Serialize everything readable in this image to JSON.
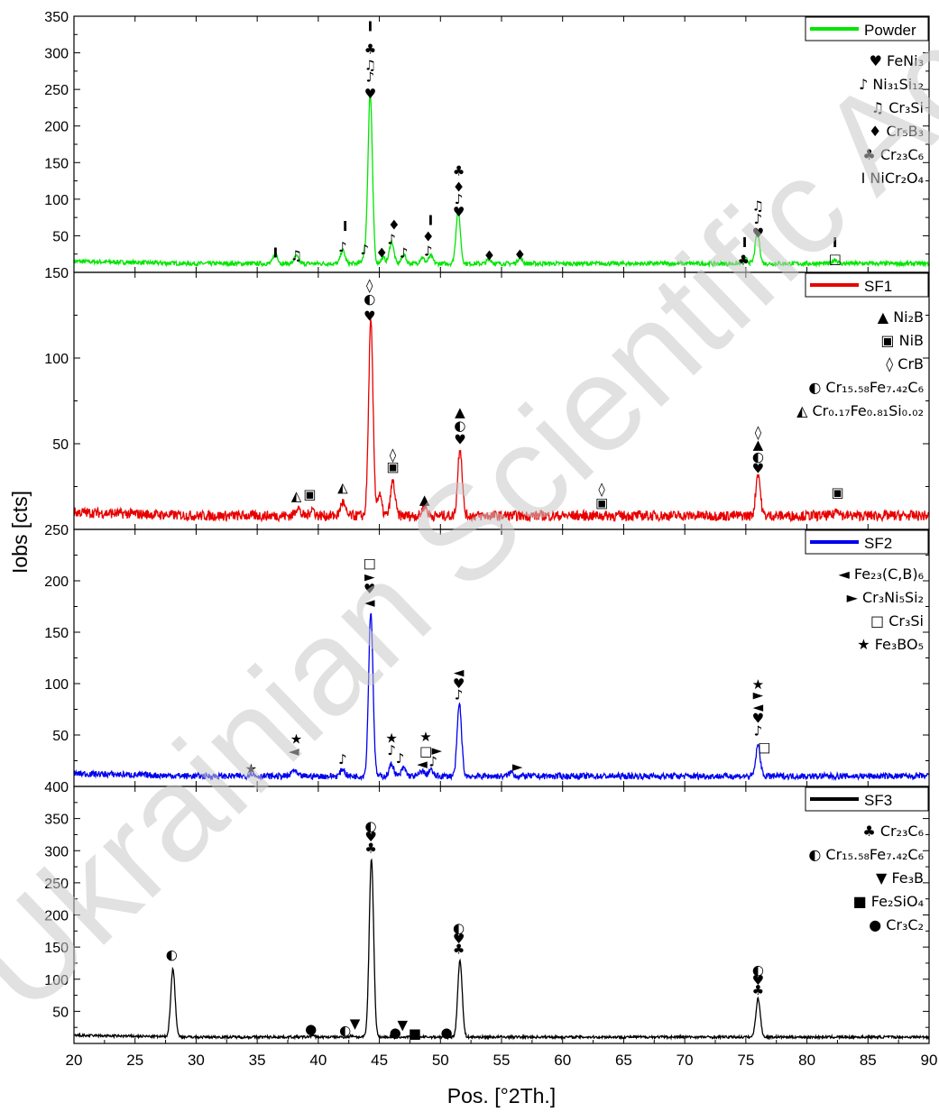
{
  "chart_data": {
    "type": "line",
    "xlabel": "Pos. [°2Th.]",
    "ylabel": "Iobs [cts]",
    "xlim": [
      20,
      90
    ],
    "xticks": [
      "20",
      "25",
      "30",
      "35",
      "40",
      "45",
      "50",
      "55",
      "60",
      "65",
      "70",
      "75",
      "80",
      "85",
      "90"
    ],
    "grid": false,
    "legend_position": "top-right",
    "watermark": "Ukrainian Scientific Academic University",
    "panels": [
      {
        "name": "Powder",
        "color": "#00e600",
        "ylim": [
          0,
          350
        ],
        "yticks": [
          "50",
          "100",
          "150",
          "200",
          "250",
          "300",
          "350"
        ],
        "baseline": 12,
        "noise": 3,
        "peaks": [
          [
            36.5,
            14
          ],
          [
            38.2,
            10
          ],
          [
            42,
            18
          ],
          [
            43.8,
            12
          ],
          [
            44.25,
            232
          ],
          [
            45.3,
            8
          ],
          [
            46,
            30
          ],
          [
            47,
            12
          ],
          [
            48.5,
            8
          ],
          [
            49.2,
            10
          ],
          [
            51.45,
            72
          ],
          [
            54,
            6
          ],
          [
            56.5,
            8
          ],
          [
            75,
            6
          ],
          [
            75.95,
            42
          ],
          [
            82.3,
            6
          ]
        ],
        "legend_phases": [
          {
            "sym": "♥",
            "formula": "FeNi₃"
          },
          {
            "sym": "♪",
            "formula": "Ni₃₁Si₁₂"
          },
          {
            "sym": "♫",
            "formula": "Cr₃Si"
          },
          {
            "sym": "♦",
            "formula": "Cr₅B₃"
          },
          {
            "sym": "♣",
            "formula": "Cr₂₃C₆"
          },
          {
            "sym": "Ι",
            "formula": "NiCr₂O₄"
          }
        ],
        "markers": [
          {
            "x": 36.5,
            "y": 28,
            "s": "Ι"
          },
          {
            "x": 38.2,
            "y": 24,
            "s": "♫"
          },
          {
            "x": 42,
            "y": 36,
            "s": "♪"
          },
          {
            "x": 42.2,
            "y": 64,
            "s": "Ι"
          },
          {
            "x": 43.8,
            "y": 32,
            "s": "♪"
          },
          {
            "x": 44.25,
            "y": 245,
            "s": "♥"
          },
          {
            "x": 44.25,
            "y": 268,
            "s": "♪"
          },
          {
            "x": 44.25,
            "y": 284,
            "s": "♫"
          },
          {
            "x": 44.25,
            "y": 306,
            "s": "♣"
          },
          {
            "x": 44.25,
            "y": 337,
            "s": "Ι"
          },
          {
            "x": 45.2,
            "y": 28,
            "s": "♦"
          },
          {
            "x": 46,
            "y": 46,
            "s": "♪"
          },
          {
            "x": 46.2,
            "y": 66,
            "s": "♦"
          },
          {
            "x": 47,
            "y": 28,
            "s": "♪"
          },
          {
            "x": 49,
            "y": 30,
            "s": "♪"
          },
          {
            "x": 49,
            "y": 50,
            "s": "♦"
          },
          {
            "x": 49.2,
            "y": 72,
            "s": "Ι"
          },
          {
            "x": 51.5,
            "y": 84,
            "s": "♥"
          },
          {
            "x": 51.5,
            "y": 101,
            "s": "♪"
          },
          {
            "x": 51.5,
            "y": 118,
            "s": "♦"
          },
          {
            "x": 51.5,
            "y": 140,
            "s": "♣"
          },
          {
            "x": 54,
            "y": 24,
            "s": "♦"
          },
          {
            "x": 56.5,
            "y": 25,
            "s": "♦"
          },
          {
            "x": 74.8,
            "y": 18,
            "s": "♣"
          },
          {
            "x": 74.9,
            "y": 42,
            "s": "Ι"
          },
          {
            "x": 76,
            "y": 55,
            "s": "♥"
          },
          {
            "x": 76,
            "y": 74,
            "s": "♪"
          },
          {
            "x": 76,
            "y": 92,
            "s": "♫"
          },
          {
            "x": 82.3,
            "y": 20,
            "s": "□"
          },
          {
            "x": 82.3,
            "y": 42,
            "s": "Ι"
          }
        ]
      },
      {
        "name": "SF1",
        "color": "#e80000",
        "ylim": [
          0,
          150
        ],
        "yticks": [
          "50",
          "100",
          "150"
        ],
        "baseline": 8,
        "noise": 3,
        "peaks": [
          [
            38.3,
            5
          ],
          [
            39.5,
            4
          ],
          [
            42,
            8
          ],
          [
            44.3,
            113
          ],
          [
            45,
            12
          ],
          [
            46.1,
            20
          ],
          [
            48.7,
            6
          ],
          [
            51.6,
            40
          ],
          [
            76,
            25
          ],
          [
            82.5,
            4
          ]
        ],
        "legend_phases": [
          {
            "sym": "▲",
            "formula": "Ni₂B"
          },
          {
            "sym": "▣",
            "formula": "NiB"
          },
          {
            "sym": "◊",
            "formula": "CrB"
          },
          {
            "sym": "◐",
            "formula": "Cr₁₅.₅₈Fe₇.₄₂C₆"
          },
          {
            "sym": "◭",
            "formula": "Cr₀.₁₇Fe₀.₈₁Si₀.₀₂"
          }
        ],
        "markers": [
          {
            "x": 38.2,
            "y": 20,
            "s": "◭"
          },
          {
            "x": 39.3,
            "y": 21,
            "s": "▣"
          },
          {
            "x": 42,
            "y": 25,
            "s": "◭"
          },
          {
            "x": 44.2,
            "y": 125,
            "s": "♥"
          },
          {
            "x": 44.2,
            "y": 135,
            "s": "◐"
          },
          {
            "x": 44.2,
            "y": 143,
            "s": "◊"
          },
          {
            "x": 46.1,
            "y": 37,
            "s": "▣"
          },
          {
            "x": 46.1,
            "y": 44,
            "s": "◊"
          },
          {
            "x": 48.7,
            "y": 18,
            "s": "▲"
          },
          {
            "x": 51.6,
            "y": 53,
            "s": "♥"
          },
          {
            "x": 51.6,
            "y": 61,
            "s": "◐"
          },
          {
            "x": 51.6,
            "y": 69,
            "s": "▲"
          },
          {
            "x": 63.2,
            "y": 16,
            "s": "▣"
          },
          {
            "x": 63.2,
            "y": 24,
            "s": "◊"
          },
          {
            "x": 76,
            "y": 36,
            "s": "♥"
          },
          {
            "x": 76,
            "y": 43,
            "s": "◐"
          },
          {
            "x": 76,
            "y": 50,
            "s": "▲"
          },
          {
            "x": 76,
            "y": 57,
            "s": "◊"
          },
          {
            "x": 82.5,
            "y": 22,
            "s": "▣"
          }
        ]
      },
      {
        "name": "SF2",
        "color": "#0000ee",
        "ylim": [
          0,
          250
        ],
        "yticks": [
          "50",
          "100",
          "150",
          "200",
          "250"
        ],
        "baseline": 10,
        "noise": 3,
        "peaks": [
          [
            34.5,
            3
          ],
          [
            38,
            6
          ],
          [
            42,
            7
          ],
          [
            44.3,
            160
          ],
          [
            46,
            12
          ],
          [
            47,
            8
          ],
          [
            48.5,
            5
          ],
          [
            49.2,
            6
          ],
          [
            51.55,
            70
          ],
          [
            55.8,
            4
          ],
          [
            76,
            30
          ]
        ],
        "legend_phases": [
          {
            "sym": "◄",
            "formula": "Fe₂₃(C,B)₆"
          },
          {
            "sym": "►",
            "formula": "Cr₃Ni₅Si₂"
          },
          {
            "sym": "□",
            "formula": "Cr₃Si"
          },
          {
            "sym": "★",
            "formula": "Fe₃BO₅"
          }
        ],
        "markers": [
          {
            "x": 34.5,
            "y": 18,
            "s": "★"
          },
          {
            "x": 38,
            "y": 35,
            "s": "◄"
          },
          {
            "x": 38.2,
            "y": 47,
            "s": "★"
          },
          {
            "x": 42,
            "y": 27,
            "s": "♪"
          },
          {
            "x": 44.2,
            "y": 180,
            "s": "◄"
          },
          {
            "x": 44.2,
            "y": 193,
            "s": "♥"
          },
          {
            "x": 44.2,
            "y": 205,
            "s": "►"
          },
          {
            "x": 44.2,
            "y": 218,
            "s": "□"
          },
          {
            "x": 46,
            "y": 36,
            "s": "♪"
          },
          {
            "x": 46,
            "y": 48,
            "s": "★"
          },
          {
            "x": 46.7,
            "y": 28,
            "s": "♪"
          },
          {
            "x": 48.5,
            "y": 23,
            "s": "◄"
          },
          {
            "x": 48.8,
            "y": 35,
            "s": "□"
          },
          {
            "x": 48.8,
            "y": 49,
            "s": "★"
          },
          {
            "x": 49.4,
            "y": 25,
            "s": "♪"
          },
          {
            "x": 49.7,
            "y": 36,
            "s": "►"
          },
          {
            "x": 51.5,
            "y": 90,
            "s": "♪"
          },
          {
            "x": 51.5,
            "y": 101,
            "s": "♥"
          },
          {
            "x": 51.5,
            "y": 112,
            "s": "◄"
          },
          {
            "x": 56.3,
            "y": 20,
            "s": "►"
          },
          {
            "x": 76,
            "y": 55,
            "s": "♪"
          },
          {
            "x": 76,
            "y": 67,
            "s": "♥"
          },
          {
            "x": 76,
            "y": 78,
            "s": "◄"
          },
          {
            "x": 76,
            "y": 90,
            "s": "►"
          },
          {
            "x": 76,
            "y": 100,
            "s": "★"
          },
          {
            "x": 76.5,
            "y": 39,
            "s": "□"
          }
        ]
      },
      {
        "name": "SF3",
        "color": "#000000",
        "ylim": [
          0,
          400
        ],
        "yticks": [
          "50",
          "100",
          "150",
          "200",
          "250",
          "300",
          "350",
          "400"
        ],
        "baseline": 10,
        "noise": 2,
        "peaks": [
          [
            28.1,
            105
          ],
          [
            39.5,
            2
          ],
          [
            42.8,
            2
          ],
          [
            44.35,
            278
          ],
          [
            51.6,
            120
          ],
          [
            76,
            60
          ]
        ],
        "legend_phases": [
          {
            "sym": "♣",
            "formula": "Cr₂₃C₆"
          },
          {
            "sym": "◐",
            "formula": "Cr₁₅.₅₈Fe₇.₄₂C₆"
          },
          {
            "sym": "▼",
            "formula": "Fe₃B"
          },
          {
            "sym": "■",
            "formula": "Fe₂SiO₄"
          },
          {
            "sym": "●",
            "formula": "Cr₃C₂"
          }
        ],
        "markers": [
          {
            "x": 28,
            "y": 140,
            "s": "◐"
          },
          {
            "x": 39.4,
            "y": 24,
            "s": "●"
          },
          {
            "x": 42.2,
            "y": 22,
            "s": "◐"
          },
          {
            "x": 43,
            "y": 32,
            "s": "▼"
          },
          {
            "x": 44.3,
            "y": 305,
            "s": "♣"
          },
          {
            "x": 44.3,
            "y": 323,
            "s": "♥"
          },
          {
            "x": 44.3,
            "y": 340,
            "s": "◐"
          },
          {
            "x": 46.3,
            "y": 18,
            "s": "●"
          },
          {
            "x": 46.9,
            "y": 30,
            "s": "▼"
          },
          {
            "x": 47.9,
            "y": 17,
            "s": "■"
          },
          {
            "x": 50.5,
            "y": 18,
            "s": "●"
          },
          {
            "x": 51.5,
            "y": 148,
            "s": "♣"
          },
          {
            "x": 51.5,
            "y": 164,
            "s": "♥"
          },
          {
            "x": 51.5,
            "y": 181,
            "s": "◐"
          },
          {
            "x": 76,
            "y": 84,
            "s": "♣"
          },
          {
            "x": 76,
            "y": 100,
            "s": "♥"
          },
          {
            "x": 76,
            "y": 116,
            "s": "◐"
          }
        ]
      }
    ]
  }
}
